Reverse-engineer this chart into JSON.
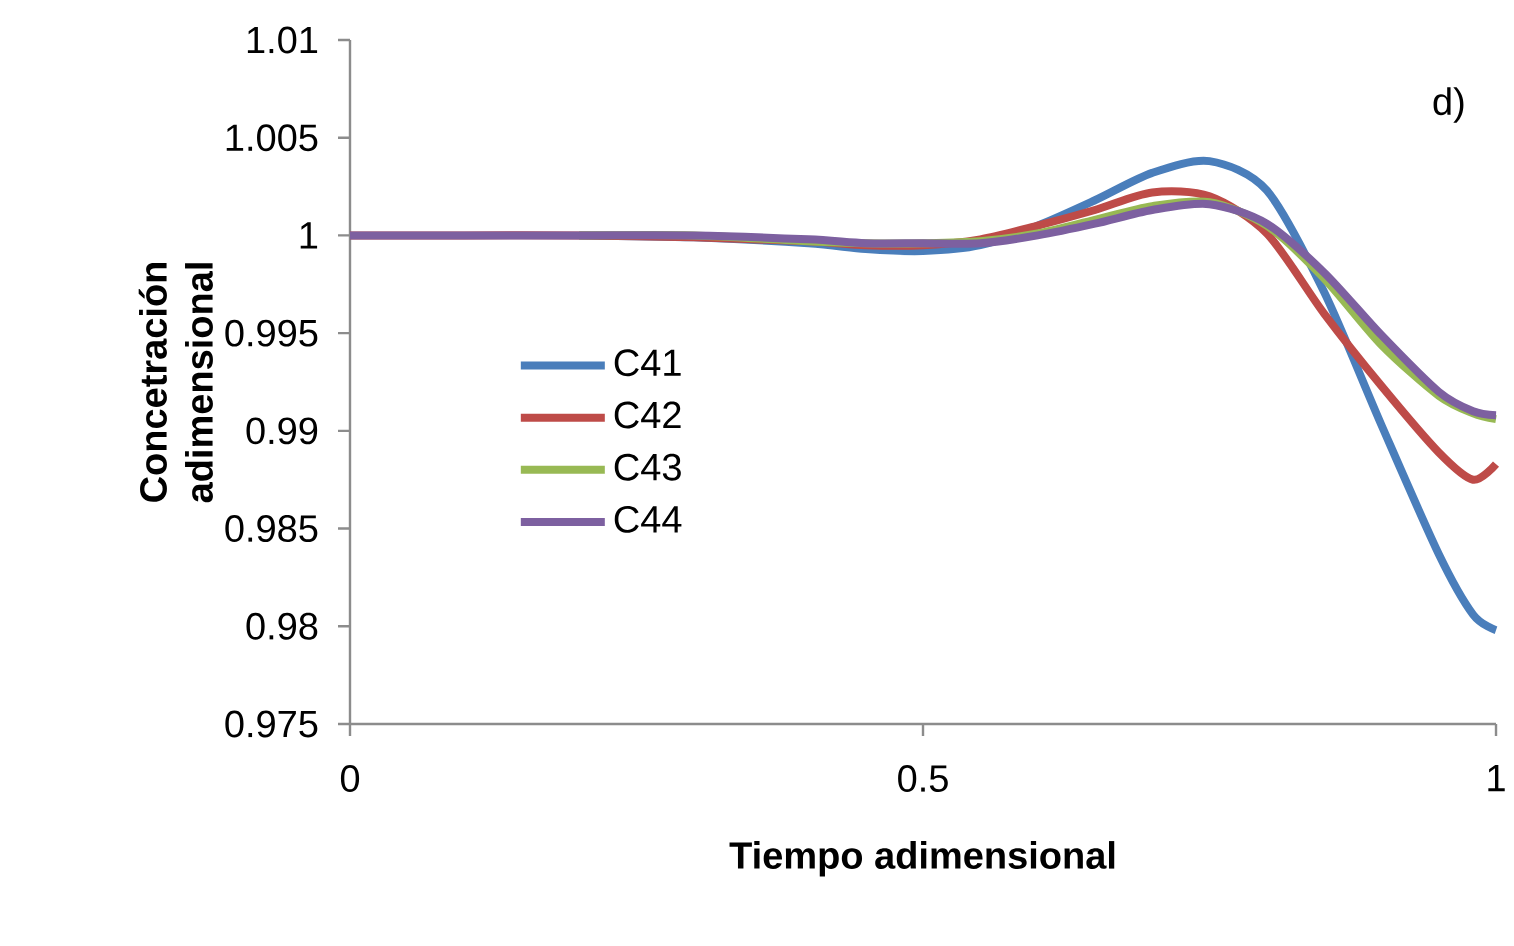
{
  "chart_data": {
    "type": "line",
    "xlabel": "Tiempo adimensional",
    "ylabel": "Concetración adimensional",
    "annotations": [
      "d)"
    ],
    "x": [
      0,
      0.1,
      0.2,
      0.3,
      0.4,
      0.45,
      0.5,
      0.55,
      0.6,
      0.65,
      0.7,
      0.75,
      0.8,
      0.85,
      0.9,
      0.95,
      0.98,
      1
    ],
    "xlim": [
      0,
      1
    ],
    "xticks": [
      0,
      0.5,
      1
    ],
    "ylim": [
      0.975,
      1.01
    ],
    "yticks": [
      0.975,
      0.98,
      0.985,
      0.99,
      0.995,
      1,
      1.005,
      1.01
    ],
    "legend": "left",
    "grid": false,
    "marker": "none",
    "line_style": "solid",
    "series": [
      {
        "name": "C41",
        "color": "#4a7ebb",
        "values": [
          null,
          null,
          1,
          0.9999,
          0.9996,
          0.9993,
          0.9992,
          0.9995,
          1.0005,
          1.0018,
          1.0032,
          1.0038,
          1.0023,
          0.9971,
          0.9903,
          0.9837,
          0.9806,
          0.9798
        ]
      },
      {
        "name": "C42",
        "color": "#be4b48",
        "values": [
          1,
          1,
          1,
          0.9999,
          0.9997,
          0.9995,
          0.9995,
          0.9998,
          1.0005,
          1.0013,
          1.0022,
          1.002,
          1.0001,
          0.996,
          0.9923,
          0.9889,
          0.9875,
          0.9883
        ]
      },
      {
        "name": "C43",
        "color": "#98b954",
        "values": [
          null,
          null,
          1,
          1,
          0.9997,
          0.9996,
          0.9996,
          0.9997,
          1.0001,
          1.0008,
          1.0015,
          1.0017,
          1.0005,
          0.9978,
          0.9944,
          0.9918,
          0.9909,
          0.9906
        ]
      },
      {
        "name": "C44",
        "color": "#7d60a0",
        "values": [
          1,
          1,
          1,
          1,
          0.9998,
          0.9996,
          0.9996,
          0.9996,
          1,
          1.0006,
          1.0013,
          1.0016,
          1.0006,
          0.9981,
          0.9949,
          0.992,
          0.991,
          0.9908
        ]
      }
    ]
  }
}
